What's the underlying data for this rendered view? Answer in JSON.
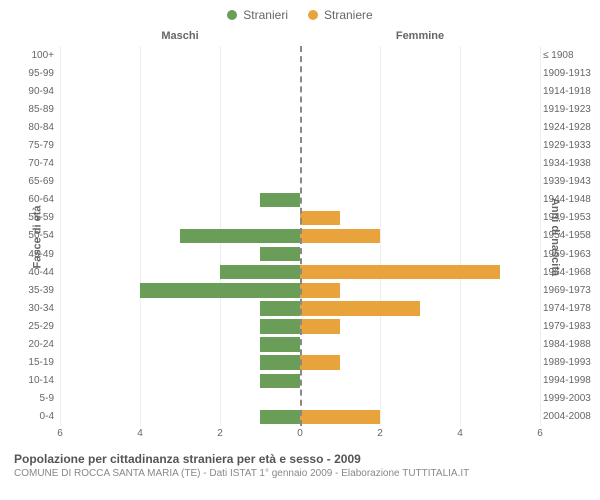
{
  "legend": {
    "male": {
      "label": "Stranieri",
      "color": "#6a9e58"
    },
    "female": {
      "label": "Straniere",
      "color": "#e8a33d"
    }
  },
  "headers": {
    "left": "Maschi",
    "right": "Femmine"
  },
  "axis_labels": {
    "left": "Fasce di età",
    "right": "Anni di nascita"
  },
  "chart": {
    "type": "population-pyramid",
    "xmax": 6,
    "xticks": [
      6,
      4,
      2,
      0,
      2,
      4,
      6
    ],
    "background_color": "#ffffff",
    "grid_color": "#eeeeee",
    "male_color": "#6a9e58",
    "female_color": "#e8a33d",
    "rows": [
      {
        "age": "100+",
        "birth": "≤ 1908",
        "m": 0,
        "f": 0
      },
      {
        "age": "95-99",
        "birth": "1909-1913",
        "m": 0,
        "f": 0
      },
      {
        "age": "90-94",
        "birth": "1914-1918",
        "m": 0,
        "f": 0
      },
      {
        "age": "85-89",
        "birth": "1919-1923",
        "m": 0,
        "f": 0
      },
      {
        "age": "80-84",
        "birth": "1924-1928",
        "m": 0,
        "f": 0
      },
      {
        "age": "75-79",
        "birth": "1929-1933",
        "m": 0,
        "f": 0
      },
      {
        "age": "70-74",
        "birth": "1934-1938",
        "m": 0,
        "f": 0
      },
      {
        "age": "65-69",
        "birth": "1939-1943",
        "m": 0,
        "f": 0
      },
      {
        "age": "60-64",
        "birth": "1944-1948",
        "m": 1,
        "f": 0
      },
      {
        "age": "55-59",
        "birth": "1949-1953",
        "m": 0,
        "f": 1
      },
      {
        "age": "50-54",
        "birth": "1954-1958",
        "m": 3,
        "f": 2
      },
      {
        "age": "45-49",
        "birth": "1959-1963",
        "m": 1,
        "f": 0
      },
      {
        "age": "40-44",
        "birth": "1964-1968",
        "m": 2,
        "f": 5
      },
      {
        "age": "35-39",
        "birth": "1969-1973",
        "m": 4,
        "f": 1
      },
      {
        "age": "30-34",
        "birth": "1974-1978",
        "m": 1,
        "f": 3
      },
      {
        "age": "25-29",
        "birth": "1979-1983",
        "m": 1,
        "f": 1
      },
      {
        "age": "20-24",
        "birth": "1984-1988",
        "m": 1,
        "f": 0
      },
      {
        "age": "15-19",
        "birth": "1989-1993",
        "m": 1,
        "f": 1
      },
      {
        "age": "10-14",
        "birth": "1994-1998",
        "m": 1,
        "f": 0
      },
      {
        "age": "5-9",
        "birth": "1999-2003",
        "m": 0,
        "f": 0
      },
      {
        "age": "0-4",
        "birth": "2004-2008",
        "m": 1,
        "f": 2
      }
    ]
  },
  "footer": {
    "title": "Popolazione per cittadinanza straniera per età e sesso - 2009",
    "subtitle": "COMUNE DI ROCCA SANTA MARIA (TE) - Dati ISTAT 1° gennaio 2009 - Elaborazione TUTTITALIA.IT"
  }
}
